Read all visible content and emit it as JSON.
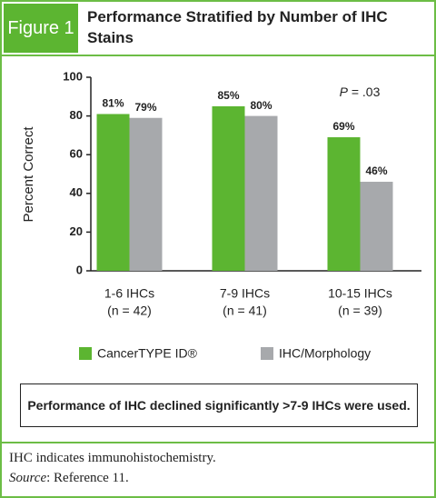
{
  "figure_label": "Figure 1",
  "chart_data": {
    "type": "bar",
    "title": "Performance Stratified by Number of IHC Stains",
    "y_label": "Percent Correct",
    "categories": [
      "1-6 IHCs",
      "7-9 IHCs",
      "10-15 IHCs"
    ],
    "category_notes": [
      "(n = 42)",
      "(n = 41)",
      "(n = 39)"
    ],
    "series": [
      {
        "name": "CancerTYPE ID®",
        "color": "#5cb531",
        "values": [
          81,
          85,
          69
        ],
        "value_labels": [
          "81%",
          "85%",
          "69%"
        ]
      },
      {
        "name": "IHC/Morphology",
        "color": "#a7a9ac",
        "values": [
          79,
          80,
          46
        ],
        "value_labels": [
          "79%",
          "80%",
          "46%"
        ]
      }
    ],
    "annotation": {
      "symbol": "P",
      "text": "= .03"
    },
    "ylim": [
      0,
      100
    ],
    "yticks": [
      0,
      20,
      40,
      60,
      80,
      100
    ]
  },
  "note": "Performance of IHC declined significantly >7-9 IHCs were used.",
  "footnote": "IHC indicates immunohistochemistry.",
  "source": {
    "label": "Source",
    "text": ": Reference 11."
  }
}
